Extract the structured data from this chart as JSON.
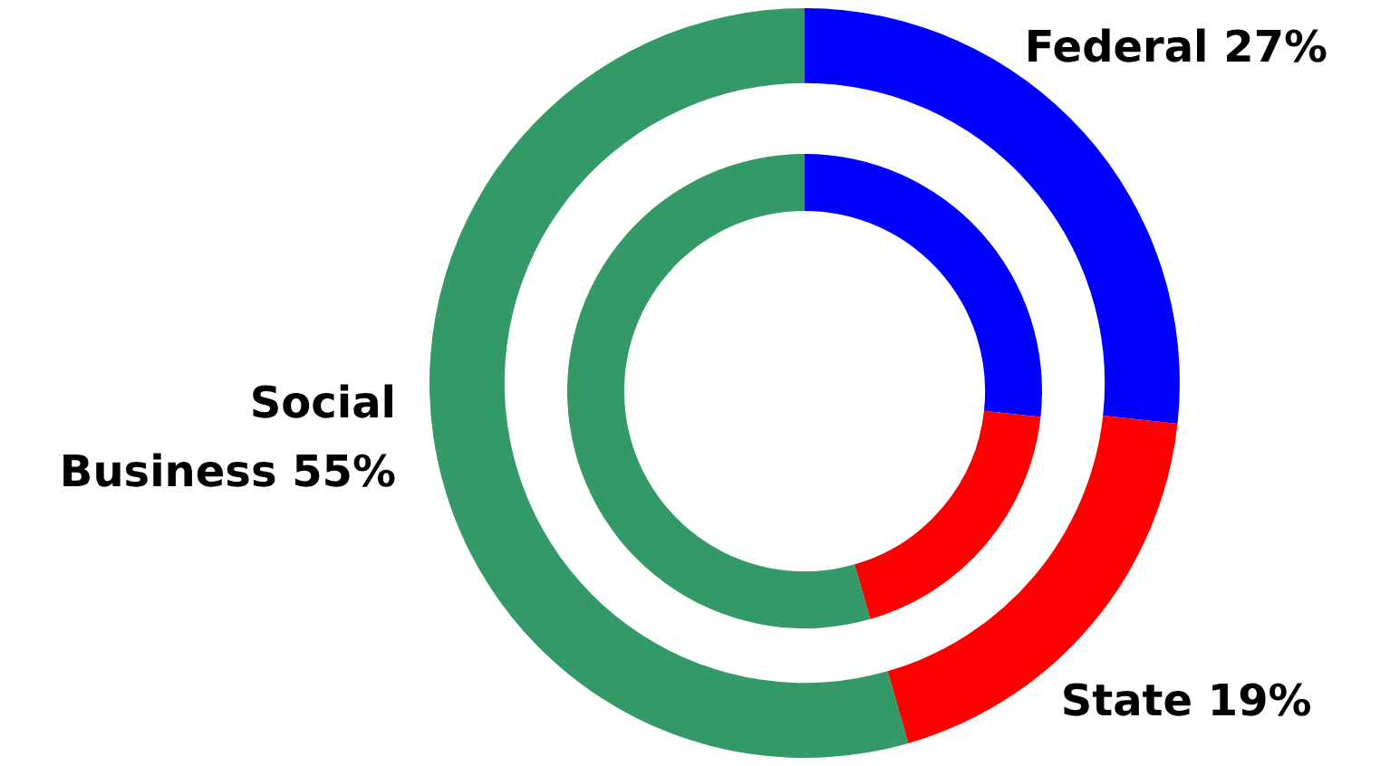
{
  "chart_data": {
    "type": "donut",
    "categories": [
      "Federal",
      "State",
      "Social Business"
    ],
    "series": [
      {
        "values": [
          27,
          19,
          55
        ],
        "colors": [
          "#0000ff",
          "#ff0000",
          "#339966"
        ]
      },
      {
        "values": [
          27,
          19,
          55
        ],
        "colors": [
          "#0000ff",
          "#ff0000",
          "#339966"
        ]
      }
    ],
    "value_labels": [
      "27%",
      "19%",
      "55%"
    ],
    "legend": false
  }
}
